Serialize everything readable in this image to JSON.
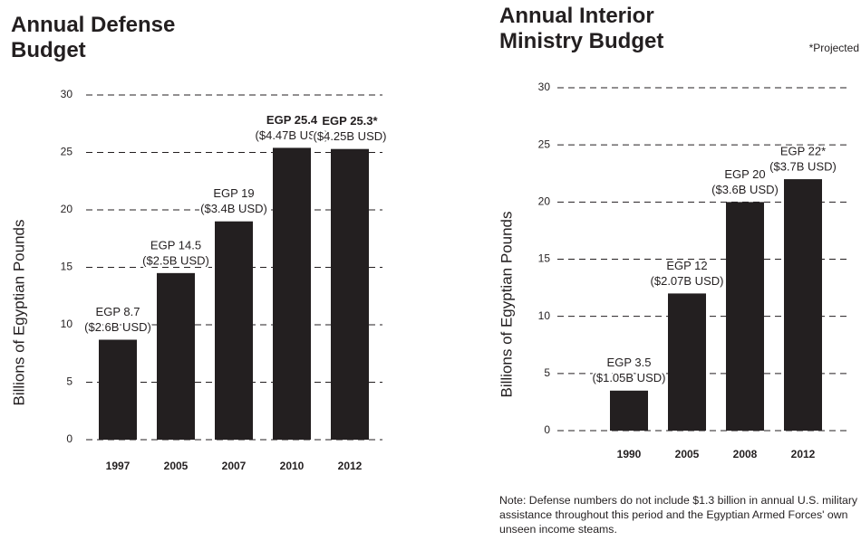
{
  "chart_data": [
    {
      "type": "bar",
      "title": "Annual Defense Budget",
      "ylabel": "Billions of Egyptian Pounds",
      "categories": [
        "1997",
        "2005",
        "2007",
        "2010",
        "2012"
      ],
      "values": [
        8.7,
        14.5,
        19,
        25.4,
        25.3
      ],
      "value_labels": [
        "EGP 8.7",
        "EGP 14.5",
        "EGP 19",
        "EGP 25.4",
        "EGP 25.3*"
      ],
      "usd_labels": [
        "($2.6B USD)",
        "($2.5B USD)",
        "($3.4B USD)",
        "($4.47B USD)",
        "($4.25B USD)"
      ],
      "color": "#231f20",
      "ylim": [
        0,
        30
      ],
      "yticks": [
        0,
        5,
        10,
        15,
        20,
        25,
        30
      ],
      "grid": true
    },
    {
      "type": "bar",
      "title": "Annual Interior Ministry Budget",
      "ylabel": "Billions of Egyptian Pounds",
      "annotation": "*Projected",
      "categories": [
        "1990",
        "2005",
        "2008",
        "2012"
      ],
      "values": [
        3.5,
        12,
        20,
        22
      ],
      "value_labels": [
        "EGP 3.5",
        "EGP 12",
        "EGP 20",
        "EGP 22*"
      ],
      "usd_labels": [
        "($1.05B USD)",
        "($2.07B USD)",
        "($3.6B USD)",
        "($3.7B USD)"
      ],
      "color": "#231f20",
      "ylim": [
        0,
        30
      ],
      "yticks": [
        0,
        5,
        10,
        15,
        20,
        25,
        30
      ],
      "grid": true,
      "note": "Note: Defense numbers do not include $1.3 billion in annual U.S. military assistance throughout this period and the Egyptian Armed Forces' own unseen income steams."
    }
  ]
}
